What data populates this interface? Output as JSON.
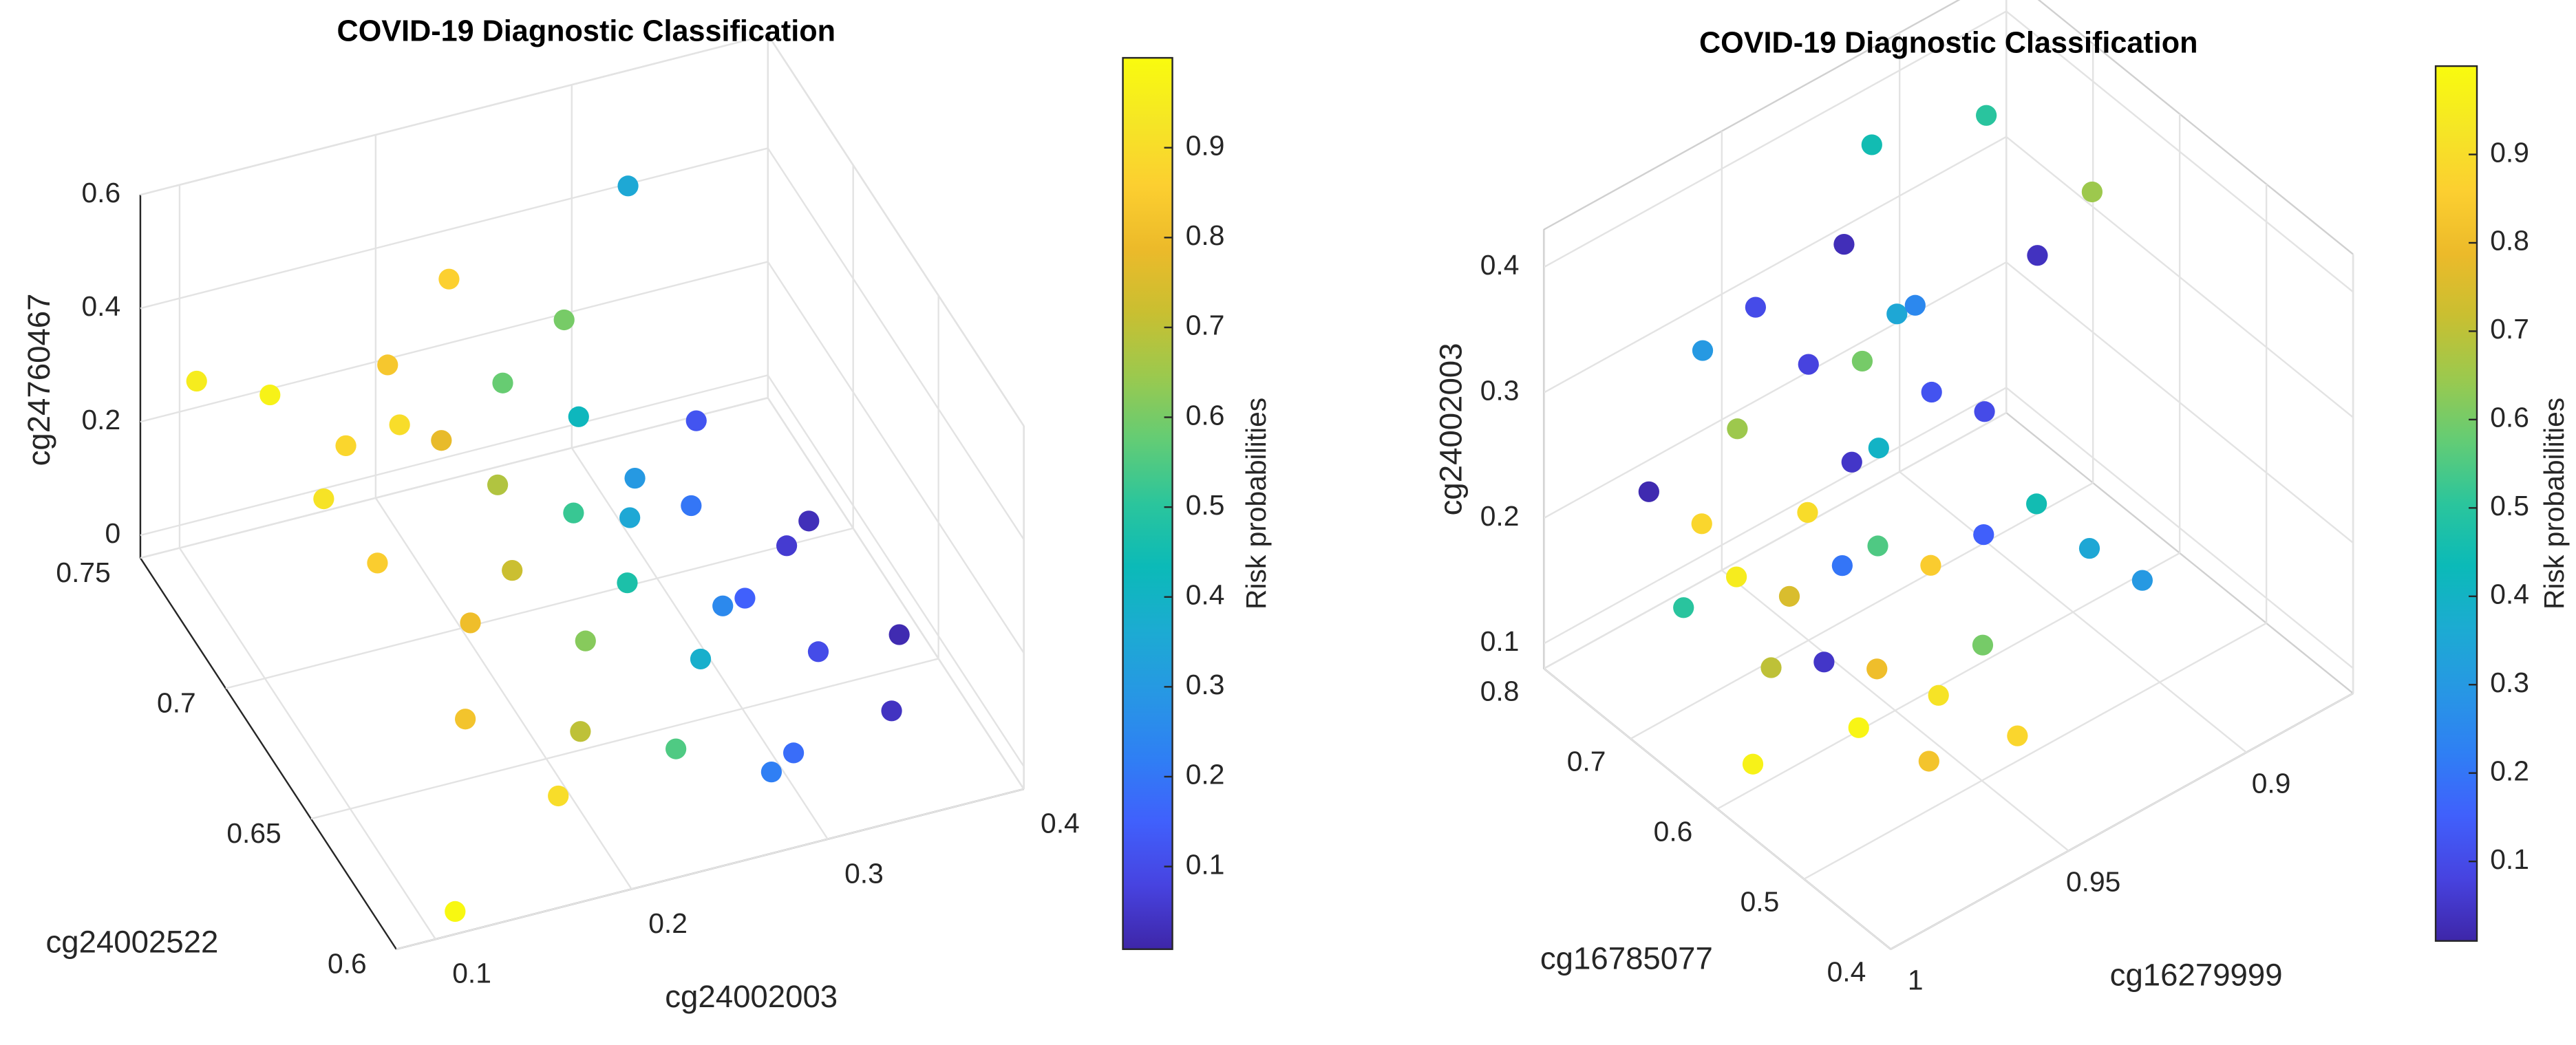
{
  "chart_data": [
    {
      "type": "scatter3d",
      "title": "COVID-19 Diagnostic Classification",
      "xlabel": "cg24002003",
      "ylabel": "cg24002522",
      "zlabel": "cg24760467",
      "xlim": [
        0.08,
        0.4
      ],
      "ylim": [
        0.6,
        0.75
      ],
      "zlim": [
        -0.04,
        0.6
      ],
      "xticks": [
        0.1,
        0.2,
        0.3,
        0.4
      ],
      "yticks": [
        0.6,
        0.65,
        0.7,
        0.75
      ],
      "zticks": [
        0,
        0.2,
        0.4,
        0.6
      ],
      "grid": true,
      "x": [
        0.12,
        0.1,
        0.13,
        0.15,
        0.14,
        0.16,
        0.18,
        0.17,
        0.19,
        0.2,
        0.21,
        0.22,
        0.23,
        0.24,
        0.25,
        0.26,
        0.27,
        0.26,
        0.28,
        0.29,
        0.3,
        0.31,
        0.32,
        0.33,
        0.34,
        0.35,
        0.36,
        0.3,
        0.28,
        0.38,
        0.2,
        0.15,
        0.32,
        0.11,
        0.22,
        0.18,
        0.24,
        0.27
      ],
      "y": [
        0.72,
        0.74,
        0.7,
        0.71,
        0.68,
        0.69,
        0.72,
        0.66,
        0.7,
        0.67,
        0.69,
        0.65,
        0.71,
        0.68,
        0.66,
        0.7,
        0.64,
        0.67,
        0.69,
        0.65,
        0.68,
        0.66,
        0.7,
        0.64,
        0.67,
        0.62,
        0.68,
        0.62,
        0.61,
        0.65,
        0.63,
        0.64,
        0.74,
        0.6,
        0.73,
        0.62,
        0.62,
        0.72
      ],
      "z": [
        0.35,
        0.3,
        0.25,
        0.28,
        0.22,
        0.4,
        0.35,
        0.18,
        0.3,
        0.2,
        0.25,
        0.15,
        0.32,
        0.22,
        0.18,
        0.28,
        0.12,
        0.24,
        0.2,
        0.15,
        0.18,
        0.1,
        0.22,
        0.08,
        0.12,
        0.05,
        0.1,
        0.02,
        0.05,
        0.02,
        0.1,
        0.12,
        0.45,
        0.0,
        0.42,
        0.05,
        0.08,
        0.35
      ],
      "color_values": [
        0.97,
        0.95,
        0.92,
        0.88,
        0.85,
        0.9,
        0.83,
        0.8,
        0.78,
        0.72,
        0.68,
        0.62,
        0.58,
        0.52,
        0.47,
        0.42,
        0.38,
        0.35,
        0.3,
        0.25,
        0.2,
        0.15,
        0.12,
        0.1,
        0.06,
        0.04,
        0.03,
        0.18,
        0.22,
        0.02,
        0.7,
        0.82,
        0.35,
        0.99,
        0.86,
        0.9,
        0.55,
        0.6
      ],
      "colorbar": {
        "label": "Risk probabilities",
        "clim": [
          0.008,
          1
        ],
        "ticks": [
          0.1,
          0.2,
          0.3,
          0.4,
          0.5,
          0.6,
          0.7,
          0.8,
          0.9
        ],
        "colormap": "parula"
      }
    },
    {
      "type": "scatter3d",
      "title": "COVID-19 Diagnostic Classification",
      "xlabel": "cg16279999",
      "ylabel": "cg16785077",
      "zlabel": "cg24002003",
      "xlim": [
        0.87,
        1
      ],
      "ylim": [
        0.4,
        0.8
      ],
      "zlim": [
        0.08,
        0.43
      ],
      "xdir": "reverse",
      "xticks": [
        0.9,
        0.95,
        1
      ],
      "yticks": [
        0.4,
        0.5,
        0.6,
        0.7,
        0.8
      ],
      "zticks": [
        0.1,
        0.2,
        0.3,
        0.4
      ],
      "grid": true,
      "x": [
        0.95,
        0.94,
        0.96,
        0.93,
        0.92,
        0.91,
        0.97,
        0.96,
        0.95,
        0.94,
        0.93,
        0.97,
        0.98,
        0.96,
        0.95,
        0.94,
        0.92,
        0.91,
        0.97,
        0.98,
        0.99,
        0.93,
        0.92,
        0.97,
        0.98,
        0.96,
        0.9,
        0.88,
        0.9,
        0.99,
        0.94,
        0.95,
        0.93,
        0.97,
        0.92,
        0.99,
        0.96,
        0.94
      ],
      "y": [
        0.65,
        0.7,
        0.72,
        0.68,
        0.75,
        0.6,
        0.7,
        0.66,
        0.62,
        0.6,
        0.58,
        0.64,
        0.66,
        0.58,
        0.55,
        0.54,
        0.56,
        0.54,
        0.6,
        0.7,
        0.72,
        0.64,
        0.7,
        0.74,
        0.62,
        0.52,
        0.7,
        0.66,
        0.52,
        0.6,
        0.66,
        0.7,
        0.72,
        0.56,
        0.62,
        0.68,
        0.62,
        0.5
      ],
      "z": [
        0.25,
        0.38,
        0.35,
        0.32,
        0.4,
        0.38,
        0.28,
        0.22,
        0.2,
        0.18,
        0.2,
        0.18,
        0.2,
        0.14,
        0.12,
        0.15,
        0.22,
        0.18,
        0.15,
        0.22,
        0.25,
        0.28,
        0.3,
        0.32,
        0.15,
        0.1,
        0.42,
        0.35,
        0.15,
        0.1,
        0.24,
        0.3,
        0.26,
        0.12,
        0.26,
        0.18,
        0.2,
        0.1
      ],
      "color_values": [
        0.05,
        0.03,
        0.1,
        0.35,
        0.45,
        0.04,
        0.65,
        0.9,
        0.55,
        0.85,
        0.15,
        0.75,
        0.95,
        0.8,
        0.92,
        0.6,
        0.45,
        0.35,
        0.05,
        0.88,
        0.02,
        0.12,
        0.25,
        0.3,
        0.7,
        0.82,
        0.5,
        0.65,
        0.3,
        0.97,
        0.4,
        0.08,
        0.6,
        0.98,
        0.1,
        0.5,
        0.2,
        0.88
      ],
      "colorbar": {
        "label": "Risk probabilities",
        "clim": [
          0.01,
          1
        ],
        "ticks": [
          0.1,
          0.2,
          0.3,
          0.4,
          0.5,
          0.6,
          0.7,
          0.8,
          0.9
        ],
        "colormap": "parula"
      }
    }
  ]
}
